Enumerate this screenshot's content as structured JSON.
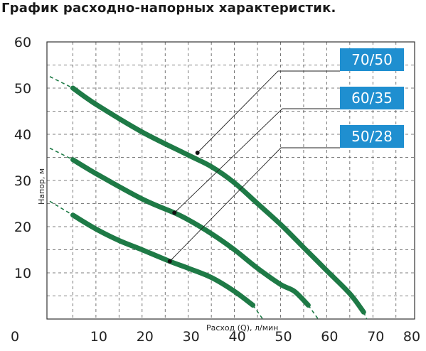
{
  "title": "График расходно-напорных характеристик.",
  "chart_data": {
    "type": "line",
    "xlabel": "Расход (Q), л/мин",
    "ylabel": "Напор, м",
    "xlim": [
      0,
      80
    ],
    "ylim": [
      0,
      60
    ],
    "x_ticks": [
      "0",
      "10",
      "20",
      "30",
      "40",
      "50",
      "60",
      "70",
      "80"
    ],
    "y_ticks": [
      "10",
      "20",
      "30",
      "40",
      "50",
      "60"
    ],
    "grid": true,
    "colors": {
      "curve": "#1e7a46",
      "badge": "#1f8fd0",
      "leader": "#222222",
      "grid": "#555555",
      "dashed": "#1e7a46"
    },
    "series": [
      {
        "name": "70/50",
        "x": [
          5,
          10,
          20,
          30,
          35,
          40,
          45,
          50,
          55,
          60,
          65,
          68
        ],
        "y": [
          50,
          46.5,
          40.5,
          35.5,
          33,
          29.5,
          25,
          20.5,
          15.5,
          10.5,
          5.5,
          1.5
        ],
        "marker": [
          32,
          36
        ],
        "extrapolated": {
          "start": [
            0,
            52.5
          ],
          "end": [
            70.5,
            -4
          ]
        }
      },
      {
        "name": "60/35",
        "x": [
          5,
          10,
          20,
          27,
          30,
          35,
          40,
          45,
          50,
          53,
          56
        ],
        "y": [
          34.5,
          31.5,
          26,
          23,
          21.5,
          18.5,
          15,
          11,
          7.5,
          6,
          3
        ],
        "marker": [
          27,
          23
        ],
        "extrapolated": {
          "start": [
            0,
            37
          ],
          "end": [
            61,
            -4
          ]
        }
      },
      {
        "name": "50/28",
        "x": [
          5,
          10,
          15,
          20,
          26,
          30,
          35,
          40,
          44
        ],
        "y": [
          22.5,
          19.5,
          17,
          15,
          12.5,
          11,
          9,
          6,
          3
        ],
        "marker": [
          26,
          12.5
        ],
        "extrapolated": {
          "start": [
            0,
            25.5
          ],
          "end": [
            49,
            -4
          ]
        }
      }
    ]
  }
}
